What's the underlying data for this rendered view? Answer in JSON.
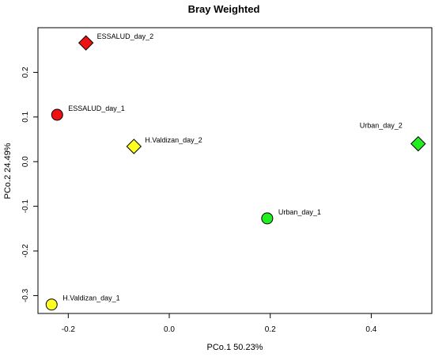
{
  "chart_data": {
    "type": "scatter",
    "title": "Bray Weighted",
    "xlabel": "PCo.1   50.23%",
    "ylabel": "PCo.2   24.49%",
    "xlim": [
      -0.26,
      0.52
    ],
    "ylim": [
      -0.34,
      0.3
    ],
    "xticks": [
      -0.2,
      0.0,
      0.2,
      0.4
    ],
    "xtick_labels": [
      "-0.2",
      "0.0",
      "0.2",
      "0.4"
    ],
    "yticks": [
      -0.3,
      -0.2,
      -0.1,
      0.0,
      0.1,
      0.2
    ],
    "ytick_labels": [
      "-0.3",
      "-0.2",
      "-0.1",
      "0.0",
      "0.1",
      "0.2"
    ],
    "grid": false,
    "points": [
      {
        "label": "ESSALUD_day_2",
        "x": -0.165,
        "y": 0.266,
        "shape": "diamond",
        "color": "#ee1111"
      },
      {
        "label": "ESSALUD_day_1",
        "x": -0.222,
        "y": 0.105,
        "shape": "circle",
        "color": "#ee1111"
      },
      {
        "label": "H.Valdizan_day_2",
        "x": -0.07,
        "y": 0.034,
        "shape": "diamond",
        "color": "#ffff22"
      },
      {
        "label": "Urban_day_2",
        "x": 0.493,
        "y": 0.04,
        "shape": "diamond",
        "color": "#22ee22"
      },
      {
        "label": "Urban_day_1",
        "x": 0.194,
        "y": -0.127,
        "shape": "circle",
        "color": "#22ee22"
      },
      {
        "label": "H.Valdizan_day_1",
        "x": -0.233,
        "y": -0.32,
        "shape": "circle",
        "color": "#ffff22"
      }
    ]
  }
}
